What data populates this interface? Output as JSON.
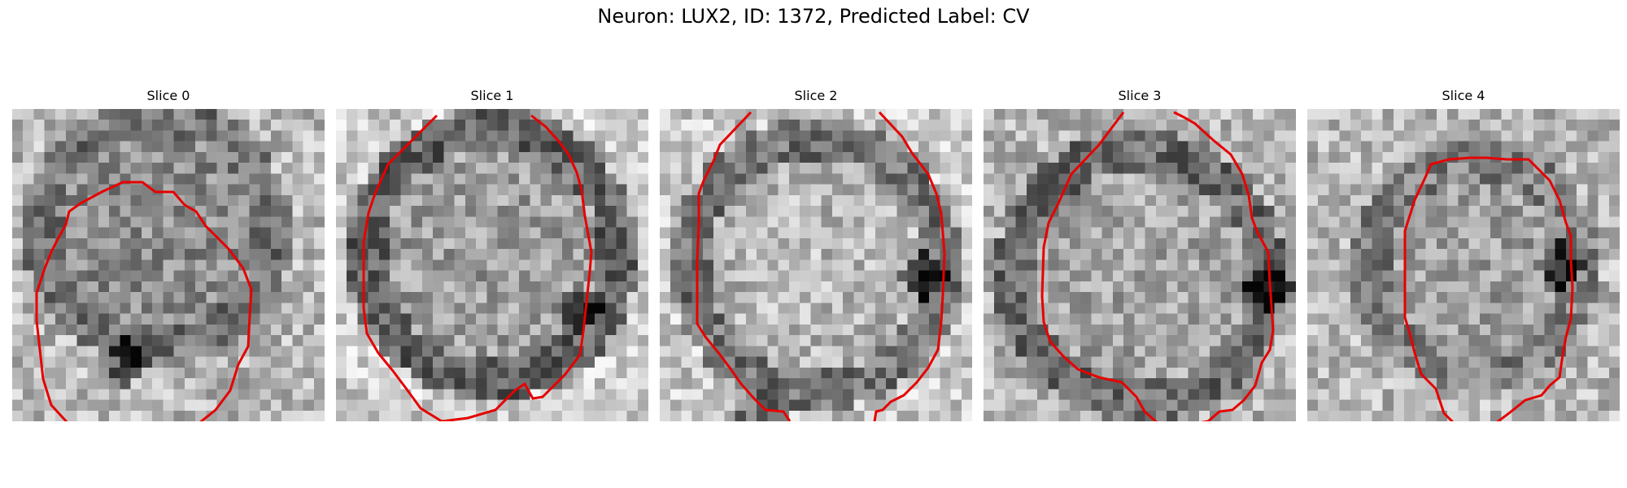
{
  "title": "Neuron: LUX2, ID: 1372, Predicted Label: CV",
  "overlay_color": "#e60000",
  "colormap": "gray",
  "slices": [
    {
      "label": "Slice 0"
    },
    {
      "label": "Slice 1"
    },
    {
      "label": "Slice 2"
    },
    {
      "label": "Slice 3"
    },
    {
      "label": "Slice 4"
    }
  ]
}
